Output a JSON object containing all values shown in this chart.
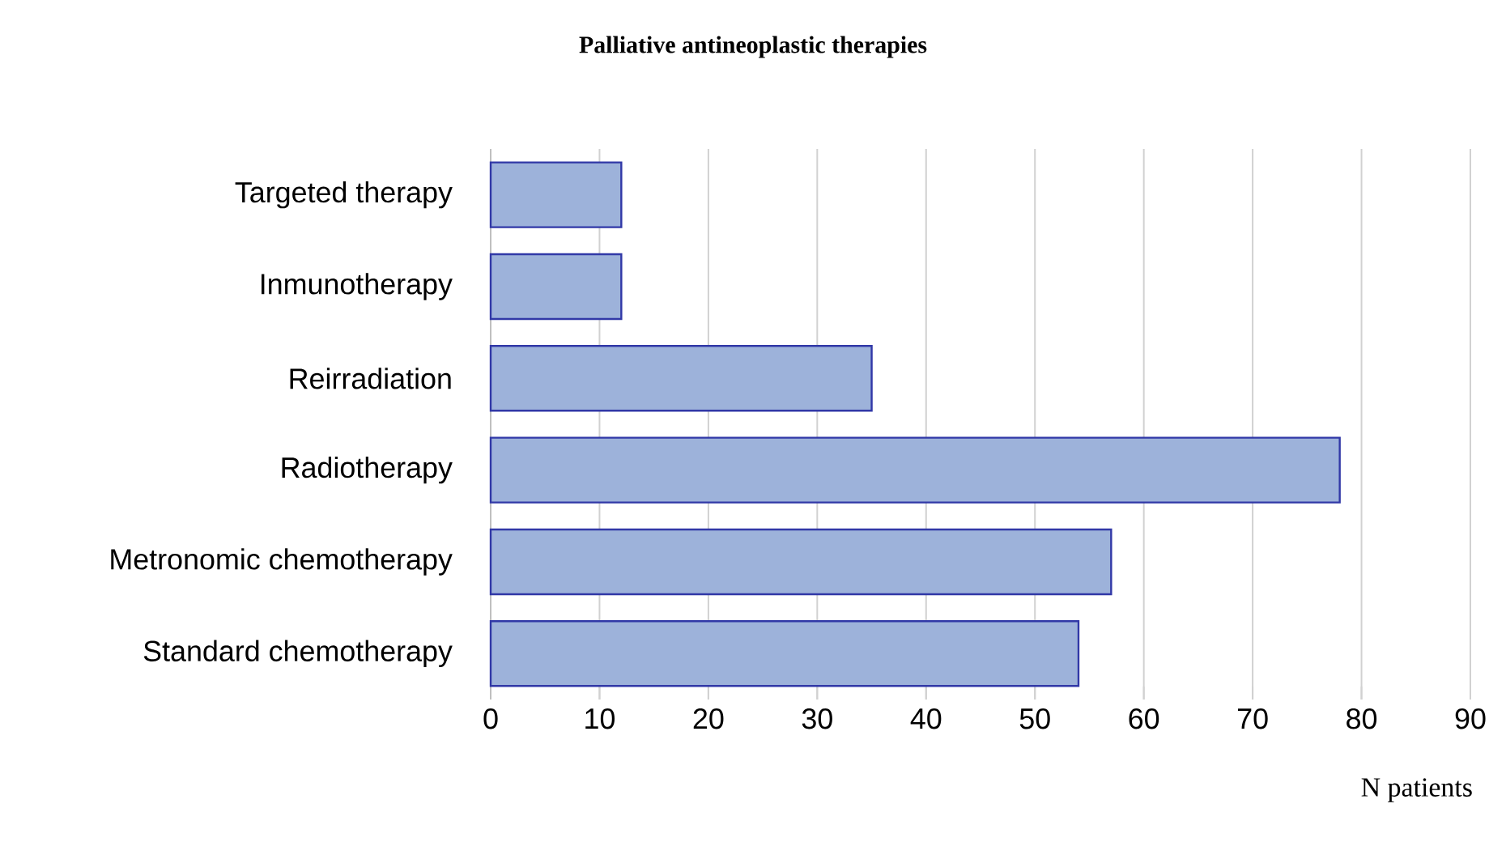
{
  "chart_data": {
    "type": "bar",
    "orientation": "horizontal",
    "title": "Palliative antineoplastic therapies",
    "xlabel": "N patients",
    "categories": [
      "Targeted therapy",
      "Inmunotherapy",
      "Reirradiation",
      "Radiotherapy",
      "Metronomic chemotherapy",
      "Standard chemotherapy"
    ],
    "values": [
      12,
      12,
      35,
      78,
      57,
      54
    ],
    "color": "#9db2da",
    "xlim": [
      0,
      90
    ],
    "xticks": [
      0,
      10,
      20,
      30,
      40,
      50,
      60,
      70,
      80,
      90
    ],
    "grid": "x"
  }
}
